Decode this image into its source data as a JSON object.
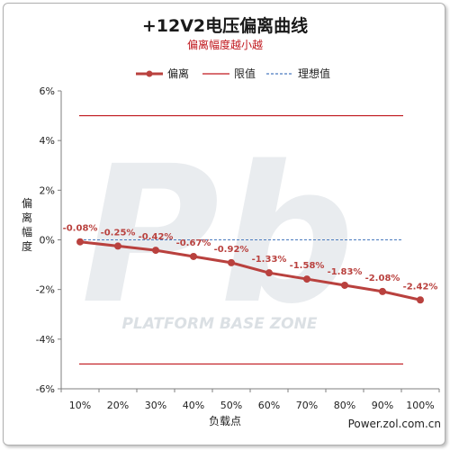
{
  "colors": {
    "series": "#b9413e",
    "limit": "#c0171d",
    "ideal": "#4a7bbf",
    "subtitle": "#c0171d",
    "axis": "#7f7f7f",
    "watermark": "#d8dde2"
  },
  "watermark": {
    "text": "PLATFORM BASE ZONE",
    "logo": "Pb"
  },
  "credit": "Power.zol.com.cn",
  "chart_data": {
    "type": "line",
    "title": "+12V2电压偏离曲线",
    "subtitle": "偏离幅度越小越",
    "xlabel": "负载点",
    "ylabel": "偏离幅度",
    "categories": [
      "10%",
      "20%",
      "30%",
      "40%",
      "50%",
      "60%",
      "70%",
      "80%",
      "90%",
      "100%"
    ],
    "ylim": [
      -6,
      6
    ],
    "yticks": [
      6,
      4,
      2,
      0,
      -2,
      -4,
      -6
    ],
    "ytick_labels": [
      "6%",
      "4%",
      "2%",
      "0%",
      "-2%",
      "-4%",
      "-6%"
    ],
    "grid": false,
    "legend_position": "top",
    "series": [
      {
        "name": "偏离",
        "values": [
          -0.08,
          -0.25,
          -0.42,
          -0.67,
          -0.92,
          -1.33,
          -1.58,
          -1.83,
          -2.08,
          -2.42
        ],
        "labels": [
          "-0.08%",
          "-0.25%",
          "-0.42%",
          "-0.67%",
          "-0.92%",
          "-1.33%",
          "-1.58%",
          "-1.83%",
          "-2.08%",
          "-2.42%"
        ],
        "style": "line-marker"
      },
      {
        "name": "限值",
        "upper": 5,
        "lower": -5,
        "style": "solid"
      },
      {
        "name": "理想值",
        "value": 0,
        "style": "dashed"
      }
    ]
  }
}
